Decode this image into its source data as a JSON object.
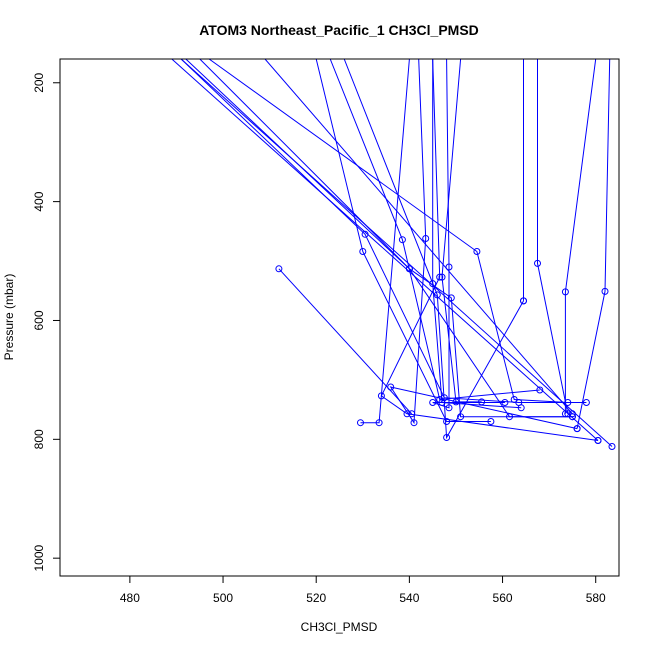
{
  "chart_data": {
    "type": "line",
    "title": "ATOM3 Northeast_Pacific_1 CH3Cl_PMSD",
    "xlabel": "CH3Cl_PMSD",
    "ylabel": "Pressure (mbar)",
    "xlim": [
      465,
      585
    ],
    "ylim": [
      1030,
      160
    ],
    "y_reversed": true,
    "x_ticks": [
      480,
      500,
      520,
      540,
      560,
      580
    ],
    "y_ticks": [
      200,
      400,
      600,
      800,
      1000
    ],
    "grid": false,
    "legend": "none",
    "line_color": "#0000ff",
    "marker": "open-circle",
    "series": [
      {
        "points": [
          [
            512.0,
            513
          ],
          [
            540.5,
            757
          ]
        ]
      },
      {
        "points": [
          [
            491,
            160
          ],
          [
            530.5,
            455
          ],
          [
            547.5,
            730
          ],
          [
            563.5,
            738
          ],
          [
            578.0,
            738
          ]
        ]
      },
      {
        "points": [
          [
            497,
            160
          ],
          [
            554.5,
            484
          ],
          [
            562.5,
            733
          ],
          [
            574.0,
            738
          ]
        ]
      },
      {
        "points": [
          [
            520,
            160
          ],
          [
            530.0,
            484
          ],
          [
            548.0,
            770
          ],
          [
            557.5,
            770
          ]
        ]
      },
      {
        "points": [
          [
            523,
            160
          ],
          [
            538.5,
            464
          ],
          [
            546.5,
            733
          ],
          [
            568.0,
            717
          ]
        ]
      },
      {
        "points": [
          [
            492,
            160
          ],
          [
            540.0,
            513
          ],
          [
            549.0,
            562
          ],
          [
            551.0,
            762
          ],
          [
            575.0,
            762
          ]
        ]
      },
      {
        "points": [
          [
            495,
            160
          ],
          [
            540.0,
            513
          ],
          [
            561.5,
            762
          ],
          [
            575.0,
            762
          ]
        ]
      },
      {
        "points": [
          [
            526,
            160
          ],
          [
            546.0,
            557
          ],
          [
            548.0,
            797
          ],
          [
            564.5,
            567
          ]
        ]
      },
      {
        "points": [
          [
            509,
            160
          ],
          [
            575.0,
            757
          ]
        ]
      },
      {
        "points": [
          [
            491,
            160
          ],
          [
            583.5,
            812
          ]
        ]
      },
      {
        "points": [
          [
            489,
            160
          ],
          [
            580.5,
            802
          ]
        ]
      },
      {
        "points": [
          [
            540,
            160
          ],
          [
            533.5,
            772
          ],
          [
            529.5,
            772
          ]
        ]
      },
      {
        "points": [
          [
            545,
            160
          ],
          [
            545.0,
            538
          ],
          [
            547.0,
            738
          ],
          [
            564.0,
            747
          ]
        ]
      },
      {
        "points": [
          [
            548,
            160
          ],
          [
            548.5,
            510
          ],
          [
            548.5,
            747
          ],
          [
            545.0,
            738
          ],
          [
            560.5,
            738
          ]
        ]
      },
      {
        "points": [
          [
            542,
            160
          ],
          [
            543.5,
            462
          ],
          [
            541.0,
            772
          ],
          [
            536.0,
            712
          ],
          [
            576.0,
            782
          ]
        ]
      },
      {
        "points": [
          [
            545,
            160
          ],
          [
            546.5,
            527
          ],
          [
            534.0,
            727
          ],
          [
            539.5,
            757
          ],
          [
            580.5,
            802
          ]
        ]
      },
      {
        "points": [
          [
            551,
            160
          ],
          [
            547.0,
            527
          ],
          [
            550.0,
            737
          ],
          [
            555.5,
            737
          ]
        ]
      },
      {
        "points": [
          [
            564.5,
            160
          ],
          [
            564.5,
            567
          ]
        ]
      },
      {
        "points": [
          [
            567.5,
            160
          ],
          [
            567.5,
            504
          ],
          [
            574.0,
            757
          ]
        ]
      },
      {
        "points": [
          [
            580,
            160
          ],
          [
            573.5,
            552
          ],
          [
            573.5,
            757
          ]
        ]
      },
      {
        "points": [
          [
            583,
            160
          ],
          [
            582.0,
            551
          ],
          [
            576.0,
            782
          ]
        ]
      }
    ]
  }
}
